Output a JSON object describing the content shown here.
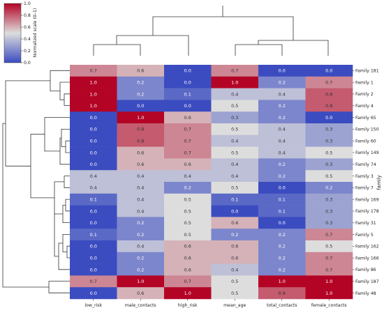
{
  "chart_data": {
    "type": "heatmap",
    "title": "",
    "xlabel": "",
    "ylabel": "family",
    "colorbar": {
      "label": "Normalized scale (0–1)",
      "colormap": "coolwarm",
      "low_color": "#3b4cc0",
      "mid_color": "#dddddd",
      "high_color": "#b40426",
      "ticks": [
        "0.0",
        "0.2",
        "0.4",
        "0.6",
        "0.8",
        "1.0"
      ],
      "range": [
        0,
        1
      ]
    },
    "columns": [
      "low_risk",
      "male_contacts",
      "high_risk",
      "mean_age",
      "total_contacts",
      "female_contacts"
    ],
    "rows": [
      "Family 181",
      "Family 1",
      "Family 2",
      "Family 4",
      "Family 65",
      "Family 150",
      "Family 60",
      "Family 149",
      "Family 74",
      "Family 3",
      "Family 7",
      "Family 169",
      "Family 178",
      "Family 31",
      "Family 5",
      "Family 162",
      "Family 166",
      "Family 86",
      "Family 187",
      "Family 48"
    ],
    "values": [
      [
        0.7,
        0.6,
        0.0,
        0.7,
        0.0,
        0.0
      ],
      [
        1.0,
        0.2,
        0.0,
        1.0,
        0.2,
        0.7
      ],
      [
        1.0,
        0.2,
        0.1,
        0.4,
        0.4,
        0.8
      ],
      [
        1.0,
        0.0,
        0.0,
        0.5,
        0.2,
        0.8
      ],
      [
        0.0,
        1.0,
        0.6,
        0.3,
        0.2,
        0.0
      ],
      [
        0.0,
        0.8,
        0.7,
        0.5,
        0.4,
        0.3
      ],
      [
        0.0,
        0.8,
        0.7,
        0.4,
        0.4,
        0.3
      ],
      [
        0.0,
        0.6,
        0.7,
        0.5,
        0.4,
        0.5
      ],
      [
        0.0,
        0.6,
        0.6,
        0.4,
        0.2,
        0.3
      ],
      [
        0.4,
        0.4,
        0.4,
        0.4,
        0.2,
        0.5
      ],
      [
        0.4,
        0.4,
        0.2,
        0.5,
        0.0,
        0.2
      ],
      [
        0.1,
        0.4,
        0.5,
        0.1,
        0.1,
        0.3
      ],
      [
        0.0,
        0.4,
        0.5,
        0.0,
        0.1,
        0.3
      ],
      [
        0.0,
        0.2,
        0.5,
        0.6,
        0.0,
        0.3
      ],
      [
        0.1,
        0.2,
        0.5,
        0.2,
        0.2,
        0.7
      ],
      [
        0.0,
        0.4,
        0.6,
        0.6,
        0.2,
        0.5
      ],
      [
        0.0,
        0.2,
        0.6,
        0.6,
        0.2,
        0.7
      ],
      [
        0.0,
        0.2,
        0.6,
        0.4,
        0.2,
        0.7
      ],
      [
        0.7,
        1.0,
        0.7,
        0.5,
        1.0,
        1.0
      ],
      [
        0.0,
        0.6,
        1.0,
        0.5,
        0.8,
        1.0
      ]
    ],
    "grid": false,
    "row_dendrogram": "left",
    "column_dendrogram": "top"
  }
}
